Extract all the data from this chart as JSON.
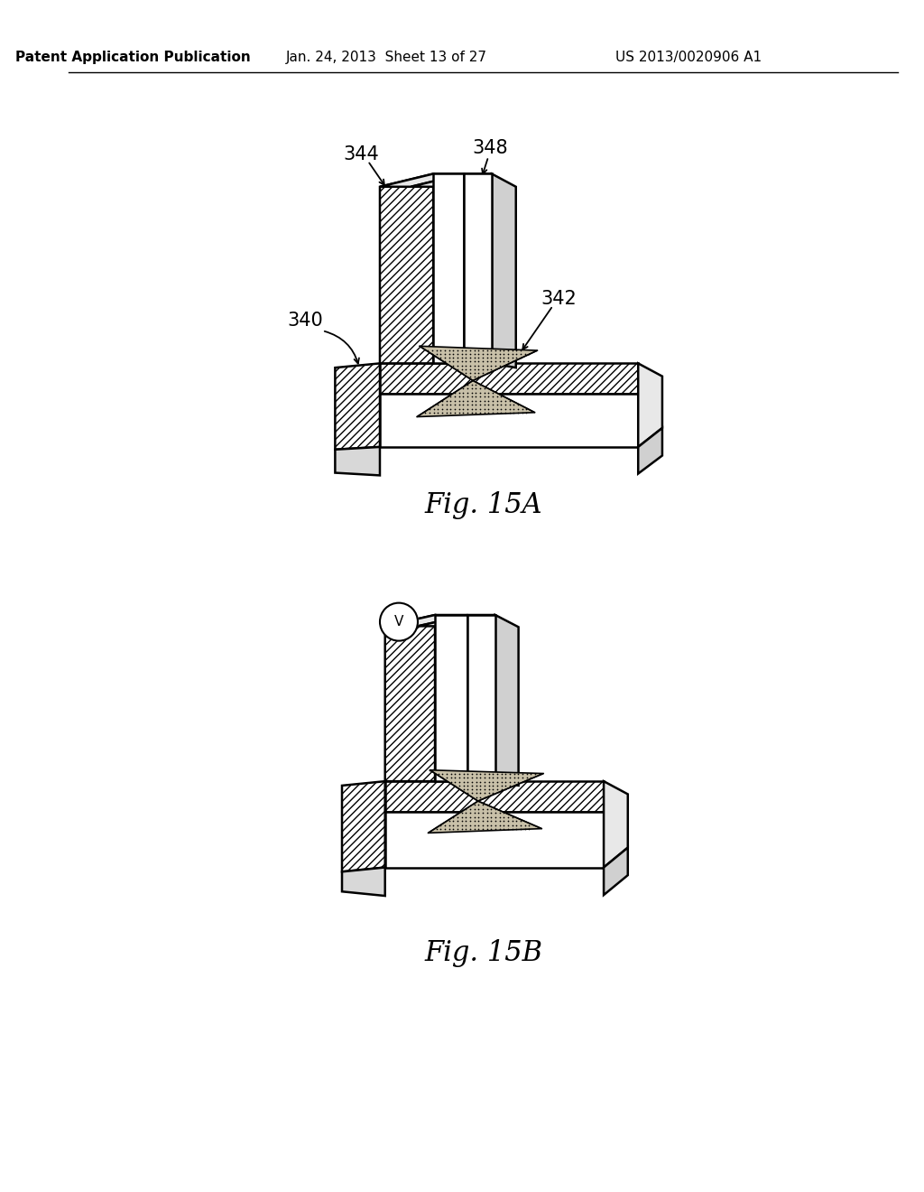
{
  "header_left": "Patent Application Publication",
  "header_center": "Jan. 24, 2013  Sheet 13 of 27",
  "header_right": "US 2013/0020906 A1",
  "fig15a_caption": "Fig. 15A",
  "fig15b_caption": "Fig. 15B",
  "label_340": "340",
  "label_342": "342",
  "label_344": "344",
  "label_348": "348",
  "label_V": "V",
  "bg_color": "#ffffff",
  "caption_fontsize": 22,
  "header_fontsize": 11,
  "label_fontsize": 15
}
